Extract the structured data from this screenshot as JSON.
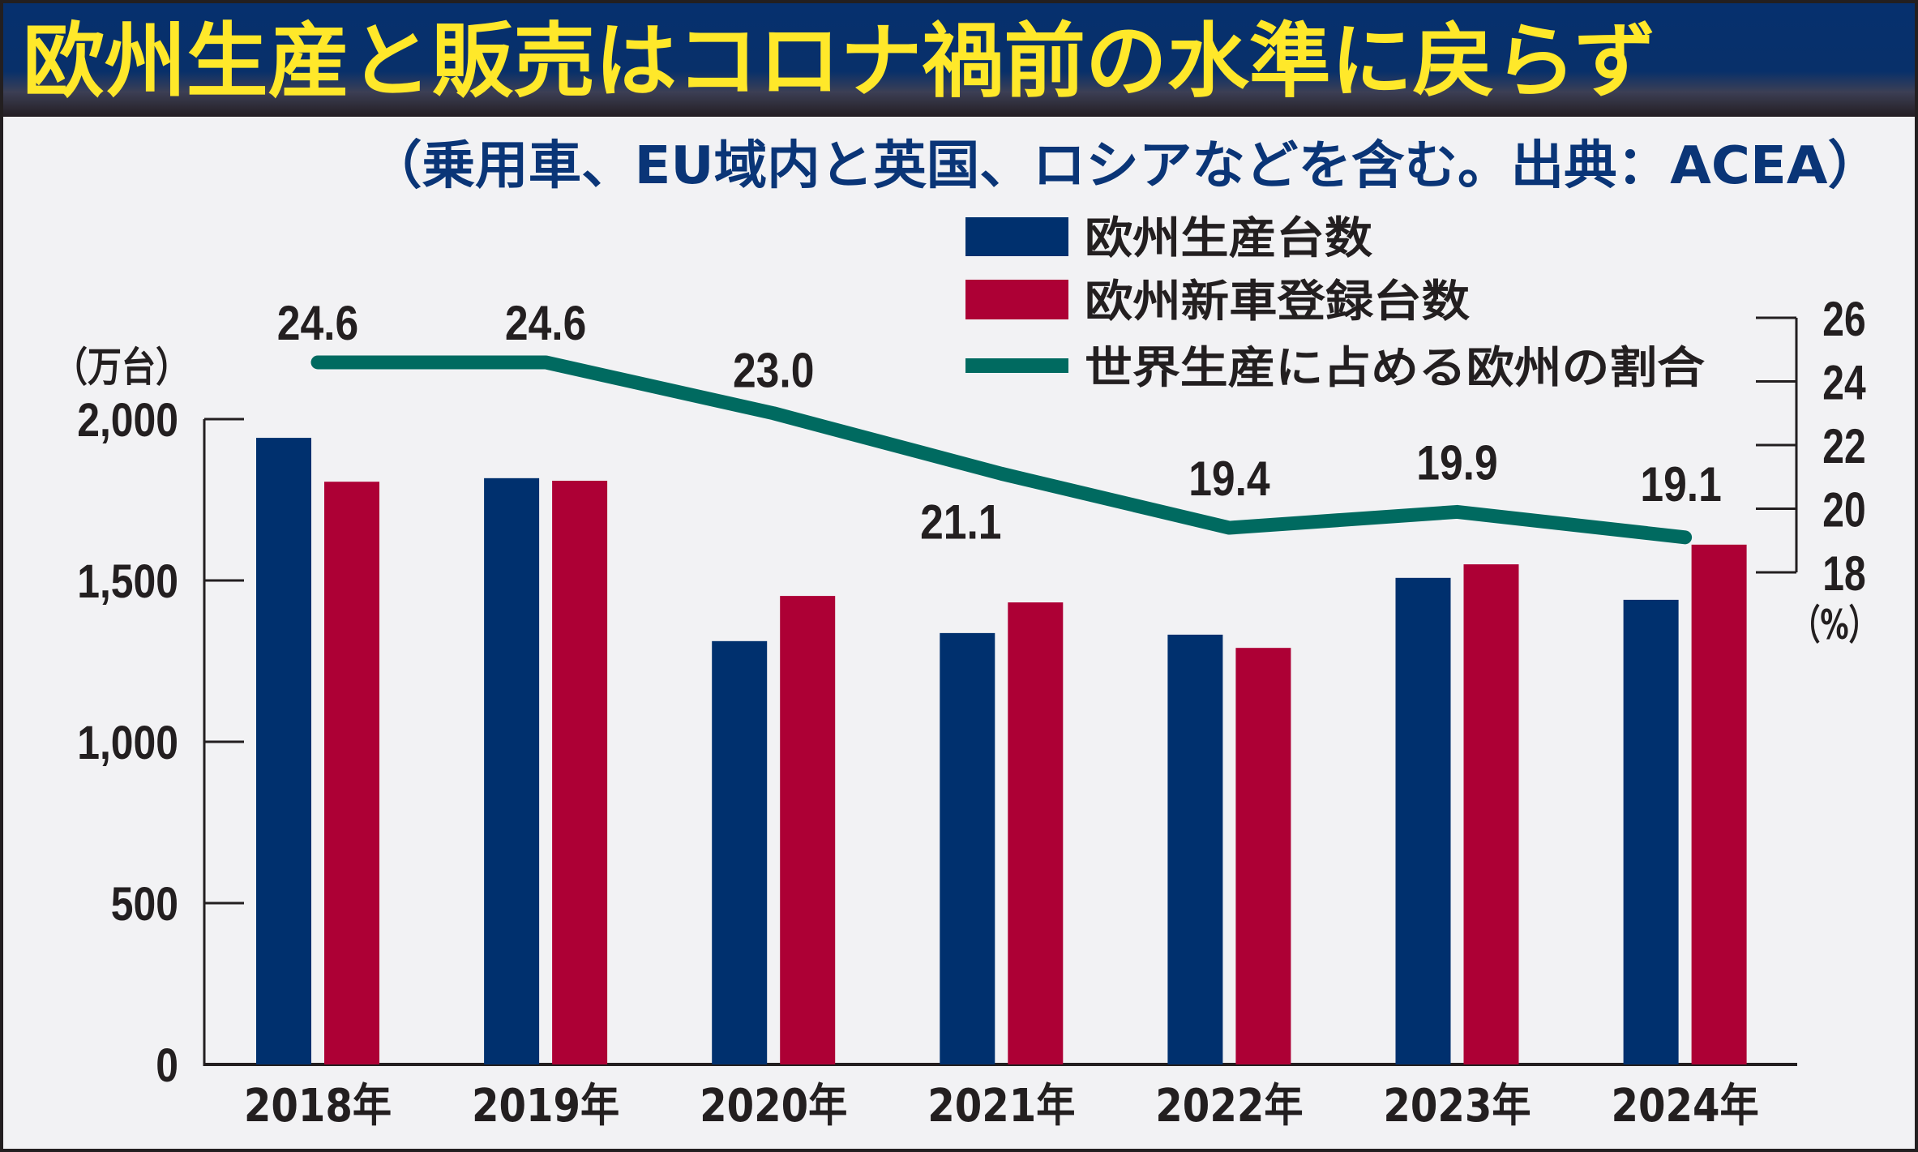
{
  "header": {
    "title": "欧州生産と販売はコロナ禍前の水準に戻らず",
    "subtitle": "（乗用車、EU域内と英国、ロシアなどを含む。出典：ACEA）"
  },
  "colors": {
    "title_bg": "#06306E",
    "title_text": "#FFE82A",
    "subtitle_text": "#0A3577",
    "background": "#F2F2F4",
    "production": "#00306E",
    "registration": "#AD0035",
    "share_line": "#006A60",
    "text": "#231F20"
  },
  "chart_data": {
    "type": "bar+line",
    "title": "欧州生産と販売はコロナ禍前の水準に戻らず",
    "subtitle": "（乗用車、EU域内と英国、ロシアなどを含む。出典：ACEA）",
    "categories": [
      "2018年",
      "2019年",
      "2020年",
      "2021年",
      "2022年",
      "2023年",
      "2024年"
    ],
    "series": [
      {
        "name": "欧州生産台数",
        "type": "bar",
        "axis": "left",
        "color": "#00306E",
        "values": [
          1942,
          1817,
          1312,
          1337,
          1332,
          1508,
          1440
        ]
      },
      {
        "name": "欧州新車登録台数",
        "type": "bar",
        "axis": "left",
        "color": "#AD0035",
        "values": [
          1806,
          1809,
          1452,
          1432,
          1291,
          1550,
          1611
        ]
      },
      {
        "name": "世界生産に占める欧州の割合",
        "type": "line",
        "axis": "right",
        "color": "#006A60",
        "values": [
          24.6,
          24.6,
          23.0,
          21.1,
          19.4,
          19.9,
          19.1
        ],
        "labels": [
          "24.6",
          "24.6",
          "23.0",
          "21.1",
          "19.4",
          "19.9",
          "19.1"
        ]
      }
    ],
    "y_left": {
      "label": "（万台）",
      "range": [
        0,
        2000
      ],
      "ticks": [
        0,
        500,
        1000,
        1500,
        2000
      ],
      "tick_labels": [
        "0",
        "500",
        "1,000",
        "1,500",
        "2,000"
      ]
    },
    "y_right": {
      "label": "（%）",
      "range": [
        18,
        26
      ],
      "ticks": [
        18,
        20,
        22,
        24,
        26
      ],
      "tick_labels": [
        "18",
        "20",
        "22",
        "24",
        "26"
      ]
    },
    "xlabel": "",
    "grid": false,
    "legend": {
      "placement": "top-right",
      "entries": [
        "欧州生産台数",
        "欧州新車登録台数",
        "世界生産に占める欧州の割合"
      ]
    }
  }
}
